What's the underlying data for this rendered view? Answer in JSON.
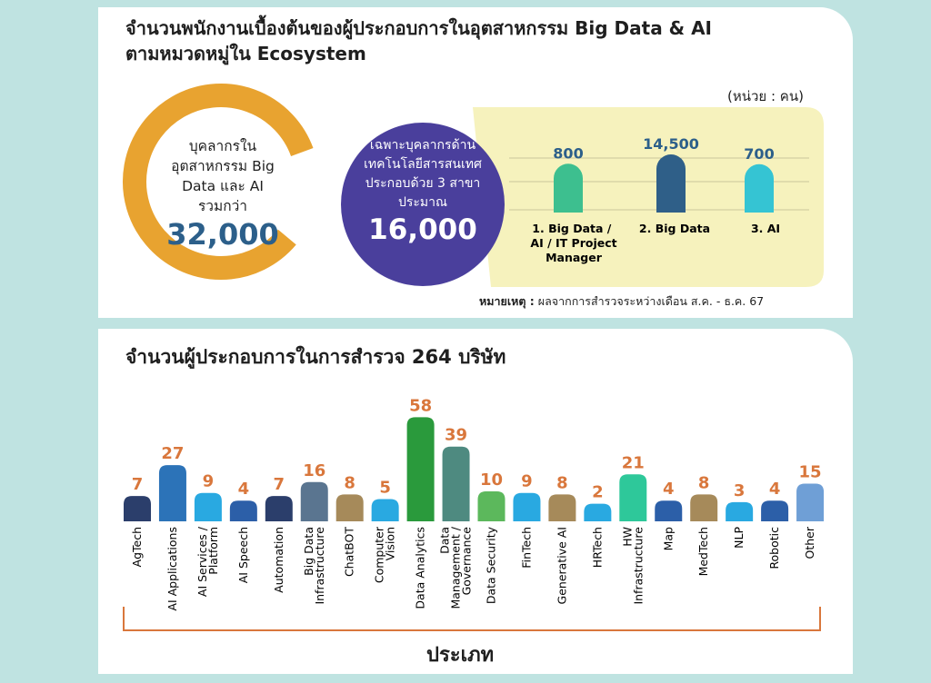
{
  "top": {
    "title_line1": "จำนวนพนักงานเบื้องต้นของผู้ประกอบการในอุตสาหกรรม Big Data & AI",
    "title_line2": "ตามหมวดหมู่ใน Ecosystem",
    "unit": "(หน่วย : คน)",
    "total_ring": {
      "label_lines": [
        "บุคลากรใน",
        "อุตสาหกรรม Big",
        "Data และ AI",
        "รวมกว่า"
      ],
      "value": "32,000"
    },
    "tech_circle": {
      "label_lines": [
        "เฉพาะบุคลากรด้าน",
        "เทคโนโลยีสารสนเทศ",
        "ประกอบด้วย 3 สาขา",
        "ประมาณ"
      ],
      "value": "16,000"
    },
    "note_bold": "หมายเหตุ :",
    "note_text": "ผลจากการสำรวจระหว่างเดือน  ส.ค. - ธ.ค. 67"
  },
  "bottom": {
    "title": "จำนวนผู้ประกอบการในการสำรวจ 264 บริษัท",
    "axis_label": "ประเภท"
  },
  "colors": {
    "ring": "#e8a330",
    "circle": "#4a3f9c",
    "value_blue": "#2c5f8a",
    "panel": "#f6f2bd",
    "label_orange": "#d9773c"
  },
  "chart_data": [
    {
      "type": "bar",
      "categories": [
        "1.  Big Data / AI / IT Project Manager",
        "2.  Big Data",
        "3.  AI"
      ],
      "values": [
        800,
        14500,
        700
      ],
      "value_labels": [
        "800",
        "14,500",
        "700"
      ],
      "colors": [
        "#3dbf8f",
        "#2f5f88",
        "#35c4d3"
      ]
    },
    {
      "type": "bar",
      "categories": [
        "AgTech",
        "AI Applications",
        "AI Services / Platform",
        "AI Speech",
        "Automation",
        "Big Data Infrastructure",
        "ChatBOT",
        "Computer Vision",
        "Data Analytics",
        "Data Management / Governance",
        "Data Security",
        "FinTech",
        "Generative AI",
        "HRTech",
        "HW Infrastructure",
        "Map",
        "MedTech",
        "NLP",
        "Robotic",
        "Other"
      ],
      "values": [
        7,
        27,
        9,
        4,
        7,
        16,
        8,
        5,
        58,
        39,
        10,
        9,
        8,
        2,
        21,
        4,
        8,
        3,
        4,
        15
      ],
      "colors": [
        "#2b3e6b",
        "#2c73b8",
        "#29a9e1",
        "#2c5fa8",
        "#2b3e6b",
        "#5a7590",
        "#a68a5a",
        "#29a9e1",
        "#2a9a3c",
        "#4e8a80",
        "#5cb85c",
        "#29a9e1",
        "#a68a5a",
        "#29a9e1",
        "#2ec89a",
        "#2c5fa8",
        "#a68a5a",
        "#29a9e1",
        "#2c5fa8",
        "#6f9fd6"
      ]
    }
  ]
}
